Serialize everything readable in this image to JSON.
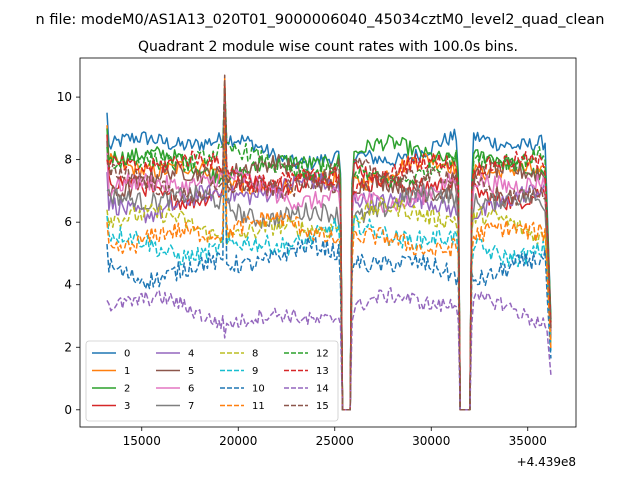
{
  "suptitle": "n file: modeM0/AS1A13_020T01_9000006040_45034cztM0_level2_quad_clean",
  "chart_data": {
    "type": "line",
    "title": "Quadrant 2 module wise count rates with 100.0s bins.",
    "xlabel": "",
    "ylabel": "",
    "x_offset_label": "+4.439e8",
    "xlim": [
      11800,
      37500
    ],
    "ylim": [
      -0.55,
      11.25
    ],
    "xticks": [
      15000,
      20000,
      25000,
      30000,
      35000
    ],
    "yticks": [
      0,
      2,
      4,
      6,
      8,
      10
    ],
    "x_range": [
      13200,
      36200
    ],
    "gaps": [
      [
        25400,
        25850
      ],
      [
        31500,
        32050
      ]
    ],
    "spike_x": 19300,
    "grid": false,
    "legend": {
      "placement": "lower-left",
      "columns": 4
    },
    "series": [
      {
        "name": "0",
        "color": "#1f77b4",
        "dash": "solid",
        "level": 8.3,
        "noise": 0.25,
        "start": 9.5,
        "spike": 10.3
      },
      {
        "name": "1",
        "color": "#ff7f0e",
        "dash": "solid",
        "level": 7.5,
        "noise": 0.28,
        "start": 9.1,
        "spike": 10.6
      },
      {
        "name": "2",
        "color": "#2ca02c",
        "dash": "solid",
        "level": 8.0,
        "noise": 0.25,
        "start": 9.0,
        "spike": 10.4
      },
      {
        "name": "3",
        "color": "#d62728",
        "dash": "solid",
        "level": 7.2,
        "noise": 0.28,
        "start": 8.8,
        "spike": 10.2
      },
      {
        "name": "4",
        "color": "#9467bd",
        "dash": "solid",
        "level": 6.8,
        "noise": 0.3,
        "start": 7.6,
        "spike": 9.8
      },
      {
        "name": "5",
        "color": "#8c564b",
        "dash": "solid",
        "level": 7.4,
        "noise": 0.3,
        "start": 8.6,
        "spike": 10.0
      },
      {
        "name": "6",
        "color": "#e377c2",
        "dash": "solid",
        "level": 7.0,
        "noise": 0.3,
        "start": 8.2,
        "spike": 9.9
      },
      {
        "name": "7",
        "color": "#7f7f7f",
        "dash": "solid",
        "level": 6.5,
        "noise": 0.3,
        "start": 7.0,
        "spike": 9.6
      },
      {
        "name": "8",
        "color": "#bcbd22",
        "dash": "dashed",
        "level": 6.0,
        "noise": 0.3,
        "start": 6.4,
        "spike": 9.4
      },
      {
        "name": "9",
        "color": "#17becf",
        "dash": "dashed",
        "level": 5.4,
        "noise": 0.3,
        "start": 6.2,
        "spike": 9.2
      },
      {
        "name": "10",
        "color": "#1f77b4",
        "dash": "dashed",
        "level": 4.7,
        "noise": 0.3,
        "start": 5.3,
        "spike": 9.0
      },
      {
        "name": "11",
        "color": "#ff7f0e",
        "dash": "dashed",
        "level": 5.6,
        "noise": 0.3,
        "start": 6.0,
        "spike": 9.3
      },
      {
        "name": "12",
        "color": "#2ca02c",
        "dash": "dashed",
        "level": 7.8,
        "noise": 0.28,
        "start": 8.4,
        "spike": 10.5
      },
      {
        "name": "13",
        "color": "#d62728",
        "dash": "dashed",
        "level": 7.6,
        "noise": 0.28,
        "start": 8.0,
        "spike": 10.4
      },
      {
        "name": "14",
        "color": "#9467bd",
        "dash": "dashed",
        "level": 3.2,
        "noise": 0.25,
        "start": 3.5,
        "spike": 2.3
      },
      {
        "name": "15",
        "color": "#8c564b",
        "dash": "dashed",
        "level": 7.3,
        "noise": 0.3,
        "start": 7.9,
        "spike": 10.7
      }
    ]
  }
}
